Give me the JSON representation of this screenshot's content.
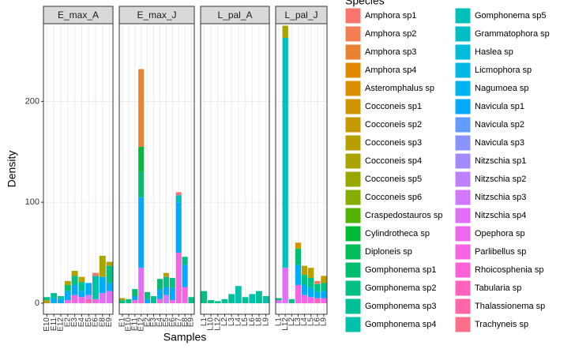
{
  "chart_data": {
    "type": "stacked-bar-facets",
    "x_label": "Samples",
    "y_label": "Density",
    "legend_title": "Species",
    "ylim": [
      -11,
      277
    ],
    "yticks": [
      0,
      100,
      200
    ],
    "grid": true,
    "species": [
      {
        "name": "Amphora sp1",
        "color": "#F8766D"
      },
      {
        "name": "Amphora sp2",
        "color": "#F27D53"
      },
      {
        "name": "Amphora sp3",
        "color": "#EA8331"
      },
      {
        "name": "Amphora sp4",
        "color": "#E38900"
      },
      {
        "name": "Asteromphalus sp",
        "color": "#DA8F00"
      },
      {
        "name": "Cocconeis sp1",
        "color": "#D09400"
      },
      {
        "name": "Cocconeis sp2",
        "color": "#C49A00"
      },
      {
        "name": "Cocconeis sp3",
        "color": "#B79F00"
      },
      {
        "name": "Cocconeis sp4",
        "color": "#A9A400"
      },
      {
        "name": "Cocconeis sp5",
        "color": "#99A800"
      },
      {
        "name": "Cocconeis sp6",
        "color": "#86AC00"
      },
      {
        "name": "Craspedostauros sp",
        "color": "#53B400"
      },
      {
        "name": "Cylindrotheca sp",
        "color": "#00BA38"
      },
      {
        "name": "Diploneis sp",
        "color": "#00BC59"
      },
      {
        "name": "Gomphonema sp1",
        "color": "#00BE70"
      },
      {
        "name": "Gomphonema sp2",
        "color": "#00C085"
      },
      {
        "name": "Gomphonema sp3",
        "color": "#00C098"
      },
      {
        "name": "Gomphonema sp4",
        "color": "#00C1AA"
      },
      {
        "name": "Gomphonema sp5",
        "color": "#00C0BB"
      },
      {
        "name": "Grammatophora sp",
        "color": "#00BFC4"
      },
      {
        "name": "Haslea sp",
        "color": "#00BCD8"
      },
      {
        "name": "Licmophora sp",
        "color": "#00B8E5"
      },
      {
        "name": "Nagumoea sp",
        "color": "#00B4F0"
      },
      {
        "name": "Navicula sp1",
        "color": "#00ABFD"
      },
      {
        "name": "Navicula sp2",
        "color": "#619CFF"
      },
      {
        "name": "Navicula sp3",
        "color": "#8A94FF"
      },
      {
        "name": "Nitzschia sp1",
        "color": "#A58AFF"
      },
      {
        "name": "Nitzschia sp2",
        "color": "#BF80FF"
      },
      {
        "name": "Nitzschia sp3",
        "color": "#D277FF"
      },
      {
        "name": "Nitzschia sp4",
        "color": "#E26EF7"
      },
      {
        "name": "Opephora sp",
        "color": "#EC69EF"
      },
      {
        "name": "Parlibellus sp",
        "color": "#F564E3"
      },
      {
        "name": "Rhoicosphenia sp",
        "color": "#FC61D5"
      },
      {
        "name": "Tabularia sp",
        "color": "#FF62BC"
      },
      {
        "name": "Thalassionema sp",
        "color": "#FF66A8"
      },
      {
        "name": "Trachyneis sp",
        "color": "#FD6F88"
      }
    ],
    "facets": [
      {
        "label": "E_max_A",
        "bars": [
          {
            "category": "E10",
            "segments": [
              {
                "species": "Cocconeis sp3",
                "value": 3
              },
              {
                "species": "Gomphonema sp2",
                "value": 3
              }
            ]
          },
          {
            "category": "E11",
            "segments": [
              {
                "species": "Navicula sp1",
                "value": 5
              },
              {
                "species": "Gomphonema sp3",
                "value": 5
              }
            ]
          },
          {
            "category": "E12",
            "segments": [
              {
                "species": "Navicula sp1",
                "value": 4
              },
              {
                "species": "Gomphonema sp4",
                "value": 3
              }
            ]
          },
          {
            "category": "E2",
            "segments": [
              {
                "species": "Parlibellus sp",
                "value": 3
              },
              {
                "species": "Navicula sp1",
                "value": 9
              },
              {
                "species": "Gomphonema sp1",
                "value": 6
              },
              {
                "species": "Cocconeis sp3",
                "value": 4
              }
            ]
          },
          {
            "category": "E3",
            "segments": [
              {
                "species": "Parlibellus sp",
                "value": 8
              },
              {
                "species": "Navicula sp1",
                "value": 10
              },
              {
                "species": "Gomphonema sp2",
                "value": 9
              },
              {
                "species": "Cocconeis sp3",
                "value": 5
              }
            ]
          },
          {
            "category": "E4",
            "segments": [
              {
                "species": "Parlibellus sp",
                "value": 6
              },
              {
                "species": "Navicula sp1",
                "value": 6
              },
              {
                "species": "Gomphonema sp3",
                "value": 9
              },
              {
                "species": "Cocconeis sp3",
                "value": 5
              }
            ]
          },
          {
            "category": "E5",
            "segments": [
              {
                "species": "Tabularia sp",
                "value": 4
              },
              {
                "species": "Nitzschia sp3",
                "value": 4
              },
              {
                "species": "Navicula sp1",
                "value": 12
              }
            ]
          },
          {
            "category": "E6",
            "segments": [
              {
                "species": "Parlibellus sp",
                "value": 4
              },
              {
                "species": "Gomphonema sp4",
                "value": 23
              },
              {
                "species": "Amphora sp1",
                "value": 3
              }
            ]
          },
          {
            "category": "E8",
            "segments": [
              {
                "species": "Nitzschia sp4",
                "value": 10
              },
              {
                "species": "Navicula sp1",
                "value": 16
              },
              {
                "species": "Cocconeis sp4",
                "value": 21
              }
            ]
          },
          {
            "category": "E9",
            "segments": [
              {
                "species": "Nitzschia sp4",
                "value": 12
              },
              {
                "species": "Navicula sp1",
                "value": 8
              },
              {
                "species": "Gomphonema sp2",
                "value": 17
              },
              {
                "species": "Cocconeis sp3",
                "value": 4
              }
            ]
          }
        ]
      },
      {
        "label": "E_max_J",
        "bars": [
          {
            "category": "E1",
            "segments": [
              {
                "species": "Gomphonema sp2",
                "value": 3
              },
              {
                "species": "Cocconeis sp3",
                "value": 2
              }
            ]
          },
          {
            "category": "E10",
            "segments": [
              {
                "species": "Gomphonema sp2",
                "value": 4
              }
            ]
          },
          {
            "category": "E11",
            "segments": [
              {
                "species": "Parlibellus sp",
                "value": 3
              },
              {
                "species": "Navicula sp1",
                "value": 4
              },
              {
                "species": "Gomphonema sp1",
                "value": 7
              }
            ]
          },
          {
            "category": "E12",
            "segments": [
              {
                "species": "Parlibellus sp",
                "value": 12
              },
              {
                "species": "Nitzschia sp4",
                "value": 23
              },
              {
                "species": "Navicula sp1",
                "value": 70
              },
              {
                "species": "Gomphonema sp1",
                "value": 25
              },
              {
                "species": "Cylindrotheca sp",
                "value": 25
              },
              {
                "species": "Amphora sp3",
                "value": 77
              }
            ]
          },
          {
            "category": "E2",
            "segments": [
              {
                "species": "Navicula sp1",
                "value": 4
              },
              {
                "species": "Gomphonema sp2",
                "value": 7
              }
            ]
          },
          {
            "category": "E3",
            "segments": [
              {
                "species": "Gomphonema sp3",
                "value": 7
              }
            ]
          },
          {
            "category": "E4",
            "segments": [
              {
                "species": "Parlibellus sp",
                "value": 4
              },
              {
                "species": "Navicula sp1",
                "value": 10
              },
              {
                "species": "Gomphonema sp1",
                "value": 10
              }
            ]
          },
          {
            "category": "E5",
            "segments": [
              {
                "species": "Nitzschia sp3",
                "value": 8
              },
              {
                "species": "Navicula sp1",
                "value": 8
              },
              {
                "species": "Gomphonema sp2",
                "value": 10
              },
              {
                "species": "Cocconeis sp3",
                "value": 4
              }
            ]
          },
          {
            "category": "E6",
            "segments": [
              {
                "species": "Parlibellus sp",
                "value": 3
              },
              {
                "species": "Navicula sp1",
                "value": 12
              },
              {
                "species": "Gomphonema sp2",
                "value": 10
              }
            ]
          },
          {
            "category": "E7",
            "segments": [
              {
                "species": "Parlibellus sp",
                "value": 50
              },
              {
                "species": "Navicula sp1",
                "value": 50
              },
              {
                "species": "Gomphonema sp5",
                "value": 7
              },
              {
                "species": "Amphora sp1",
                "value": 3
              }
            ]
          },
          {
            "category": "E8",
            "segments": [
              {
                "species": "Parlibellus sp",
                "value": 16
              },
              {
                "species": "Navicula sp1",
                "value": 22
              },
              {
                "species": "Gomphonema sp2",
                "value": 8
              }
            ]
          },
          {
            "category": "E9",
            "segments": [
              {
                "species": "Gomphonema sp2",
                "value": 6
              }
            ]
          }
        ]
      },
      {
        "label": "L_pal_A",
        "bars": [
          {
            "category": "L1",
            "segments": [
              {
                "species": "Gomphonema sp2",
                "value": 12
              }
            ]
          },
          {
            "category": "L10",
            "segments": [
              {
                "species": "Gomphonema sp2",
                "value": 3
              }
            ]
          },
          {
            "category": "L12",
            "segments": [
              {
                "species": "Gomphonema sp2",
                "value": 2
              }
            ]
          },
          {
            "category": "L2",
            "segments": [
              {
                "species": "Gomphonema sp3",
                "value": 4
              }
            ]
          },
          {
            "category": "L3",
            "segments": [
              {
                "species": "Gomphonema sp3",
                "value": 9
              }
            ]
          },
          {
            "category": "L4",
            "segments": [
              {
                "species": "Gomphonema sp4",
                "value": 17
              }
            ]
          },
          {
            "category": "L5",
            "segments": [
              {
                "species": "Gomphonema sp3",
                "value": 6
              }
            ]
          },
          {
            "category": "L6",
            "segments": [
              {
                "species": "Gomphonema sp4",
                "value": 9
              }
            ]
          },
          {
            "category": "L8",
            "segments": [
              {
                "species": "Gomphonema sp3",
                "value": 12
              }
            ]
          },
          {
            "category": "L9",
            "segments": [
              {
                "species": "Gomphonema sp4",
                "value": 7
              }
            ]
          }
        ]
      },
      {
        "label": "L_pal_J",
        "bars": [
          {
            "category": "L1",
            "segments": [
              {
                "species": "Nitzschia sp4",
                "value": 3
              },
              {
                "species": "Gomphonema sp2",
                "value": 2
              }
            ]
          },
          {
            "category": "L12",
            "segments": [
              {
                "species": "Nitzschia sp4",
                "value": 35
              },
              {
                "species": "Gomphonema sp5",
                "value": 228
              },
              {
                "species": "Cocconeis sp4",
                "value": 12
              }
            ]
          },
          {
            "category": "L2",
            "segments": [
              {
                "species": "Gomphonema sp2",
                "value": 4
              }
            ]
          },
          {
            "category": "L3",
            "segments": [
              {
                "species": "Parlibellus sp",
                "value": 18
              },
              {
                "species": "Navicula sp1",
                "value": 20
              },
              {
                "species": "Gomphonema sp1",
                "value": 16
              },
              {
                "species": "Cocconeis sp1",
                "value": 6
              }
            ]
          },
          {
            "category": "L4",
            "segments": [
              {
                "species": "Parlibellus sp",
                "value": 8
              },
              {
                "species": "Navicula sp1",
                "value": 10
              },
              {
                "species": "Gomphonema sp2",
                "value": 10
              },
              {
                "species": "Cocconeis sp3",
                "value": 9
              }
            ]
          },
          {
            "category": "L5",
            "segments": [
              {
                "species": "Parlibellus sp",
                "value": 6
              },
              {
                "species": "Navicula sp1",
                "value": 9
              },
              {
                "species": "Gomphonema sp2",
                "value": 10
              },
              {
                "species": "Cocconeis sp3",
                "value": 10
              }
            ]
          },
          {
            "category": "L6",
            "segments": [
              {
                "species": "Tabularia sp",
                "value": 5
              },
              {
                "species": "Navicula sp1",
                "value": 6
              },
              {
                "species": "Gomphonema sp2",
                "value": 8
              },
              {
                "species": "Amphora sp1",
                "value": 3
              }
            ]
          },
          {
            "category": "L9",
            "segments": [
              {
                "species": "Parlibellus sp",
                "value": 5
              },
              {
                "species": "Navicula sp1",
                "value": 7
              },
              {
                "species": "Gomphonema sp2",
                "value": 8
              },
              {
                "species": "Cocconeis sp3",
                "value": 7
              }
            ]
          }
        ]
      }
    ]
  }
}
